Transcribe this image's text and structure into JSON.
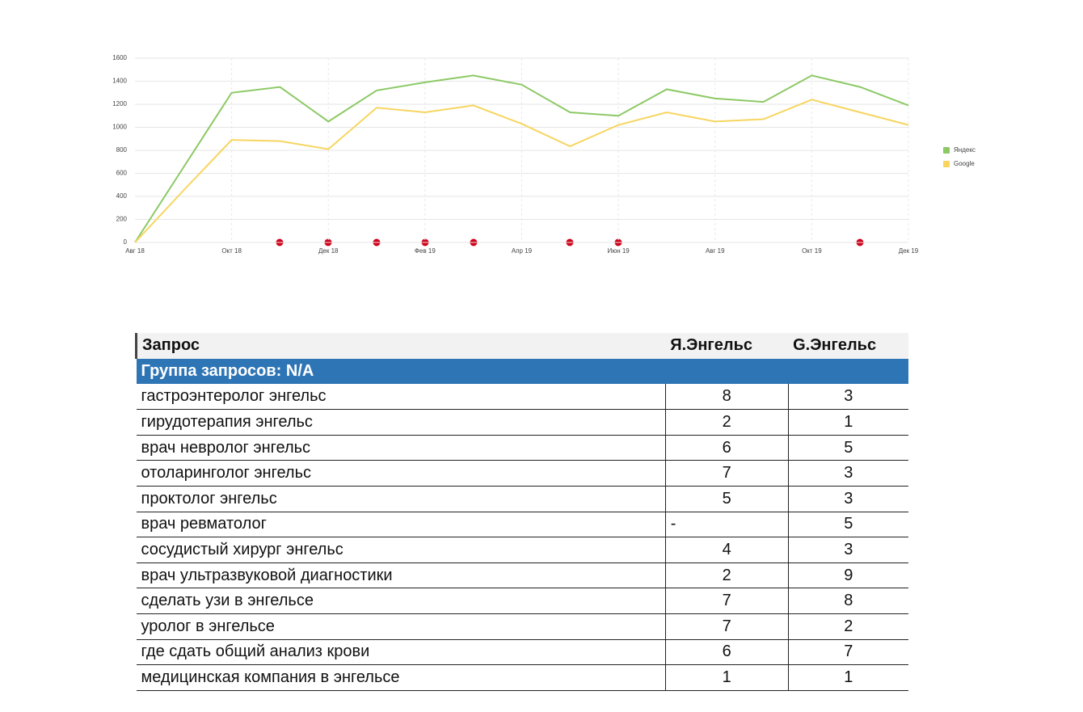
{
  "chart_data": {
    "type": "line",
    "categories": [
      "Авг 18",
      null,
      "Окт 18",
      null,
      "Дек 18",
      null,
      "Фев 19",
      null,
      "Апр 19",
      null,
      "Июн 19",
      null,
      "Авг 19",
      null,
      "Окт 19",
      null,
      "Дек 19"
    ],
    "series": [
      {
        "name": "Яндекс",
        "color": "#8cc965",
        "values": [
          0,
          650,
          1300,
          1350,
          1050,
          1320,
          1390,
          1450,
          1370,
          1130,
          1100,
          1330,
          1250,
          1220,
          1450,
          1350,
          1190
        ]
      },
      {
        "name": "Google",
        "color": "#f7d560",
        "values": [
          0,
          450,
          890,
          880,
          810,
          1170,
          1130,
          1190,
          1030,
          835,
          1020,
          1130,
          1050,
          1070,
          1240,
          1130,
          1020
        ]
      }
    ],
    "ylim": [
      0,
      1600
    ],
    "yticks": [
      0,
      200,
      400,
      600,
      800,
      1000,
      1200,
      1400,
      1600
    ],
    "grid": true,
    "legend": "right"
  },
  "table": {
    "columns": [
      "Запрос",
      "Я.Энгельс",
      "G.Энгельс"
    ],
    "group": "Группа запросов: N/A",
    "rows": [
      [
        "гастроэнтеролог энгельс",
        8,
        3
      ],
      [
        "гирудотерапия энгельс",
        2,
        1
      ],
      [
        "врач невролог энгельс",
        6,
        5
      ],
      [
        "отоларинголог энгельс",
        7,
        3
      ],
      [
        "проктолог энгельс",
        5,
        3
      ],
      [
        "врач ревматолог",
        "-",
        5
      ],
      [
        "сосудистый хирург энгельс",
        4,
        3
      ],
      [
        "врач ультразвуковой диагностики",
        2,
        9
      ],
      [
        "сделать узи в энгельсе",
        7,
        8
      ],
      [
        "уролог в энгельсе",
        7,
        2
      ],
      [
        "где сдать общий анализ крови",
        6,
        7
      ],
      [
        "медицинская компания в энгельсе",
        1,
        1
      ]
    ]
  }
}
